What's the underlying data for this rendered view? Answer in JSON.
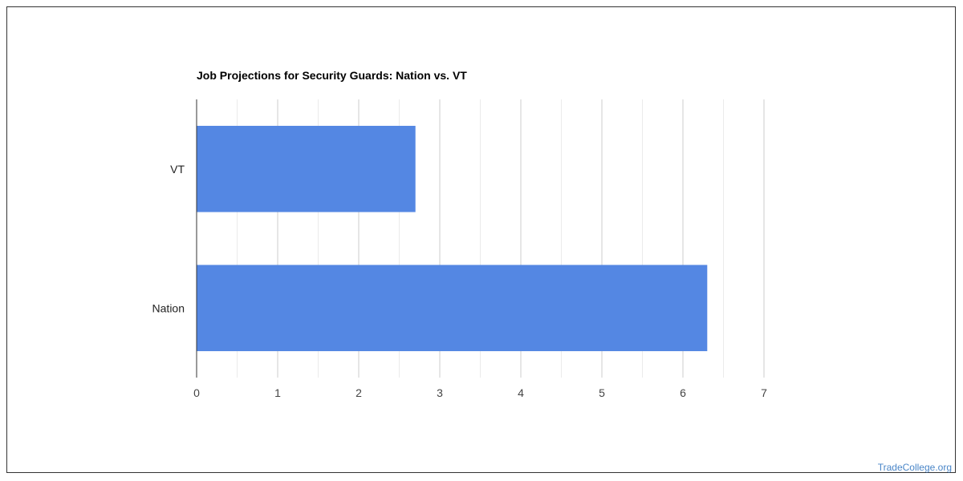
{
  "chart_data": {
    "type": "bar",
    "orientation": "horizontal",
    "title": "Job Projections for Security Guards: Nation vs. VT",
    "categories": [
      "VT",
      "Nation"
    ],
    "values": [
      2.7,
      6.3
    ],
    "xlim": [
      0,
      7
    ],
    "x_ticks": [
      "0",
      "1",
      "2",
      "3",
      "4",
      "5",
      "6",
      "7"
    ],
    "grid": true,
    "bar_color": "#5487e3"
  },
  "footer": {
    "watermark": "TradeCollege.org"
  }
}
